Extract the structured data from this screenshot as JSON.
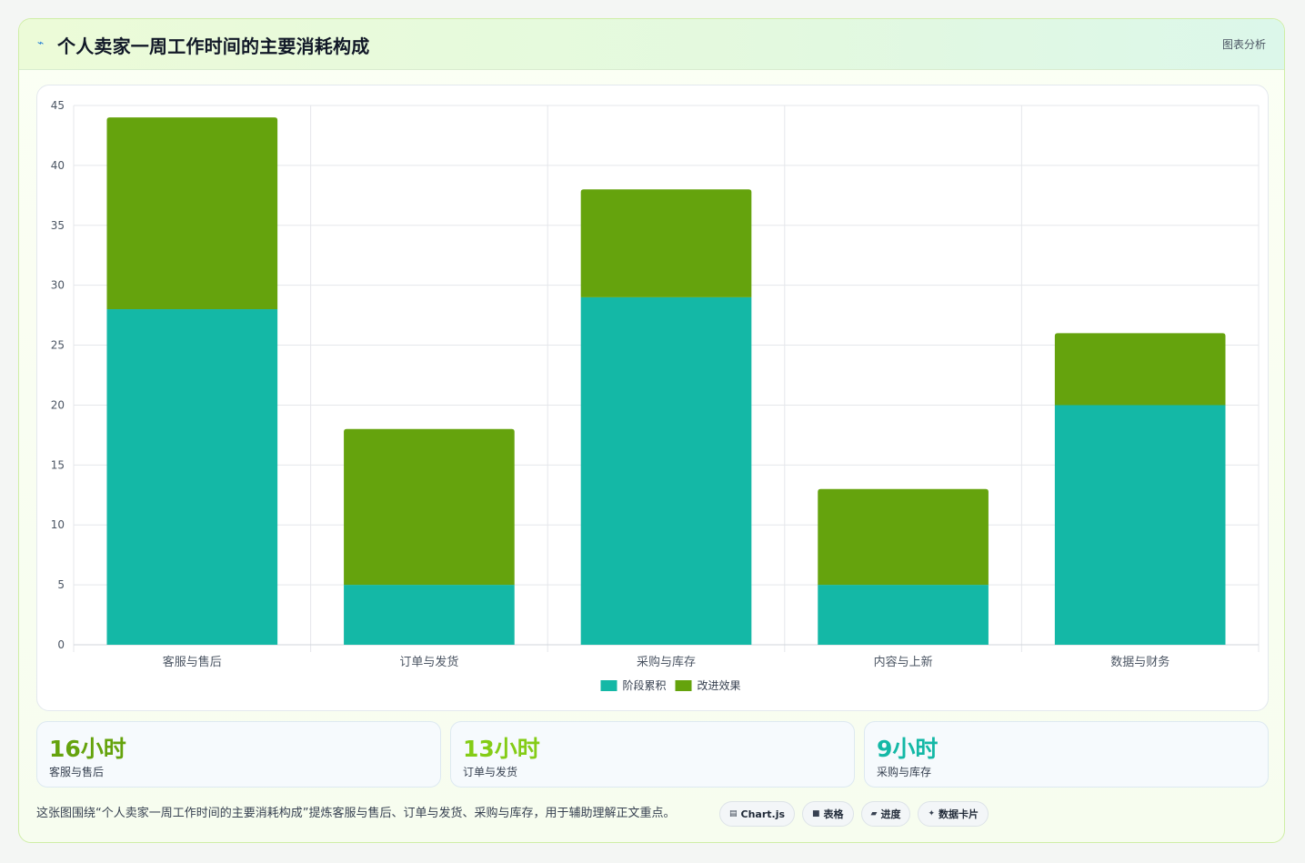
{
  "header": {
    "icon": "lightning-icon",
    "title": "个人卖家一周工作时间的主要消耗构成",
    "tag": "图表分析"
  },
  "chart_data": {
    "type": "bar",
    "stacked": true,
    "title": "",
    "xlabel": "",
    "ylabel": "",
    "ylim": [
      0,
      45
    ],
    "yticks": [
      0,
      5,
      10,
      15,
      20,
      25,
      30,
      35,
      40,
      45
    ],
    "grid": true,
    "legend_position": "bottom",
    "categories": [
      "客服与售后",
      "订单与发货",
      "采购与库存",
      "内容与上新",
      "数据与财务"
    ],
    "series": [
      {
        "name": "阶段累积",
        "color": "#14b8a6",
        "values": [
          28,
          5,
          29,
          5,
          20
        ]
      },
      {
        "name": "改进效果",
        "color": "#65a30d",
        "values": [
          16,
          13,
          9,
          8,
          6
        ]
      }
    ]
  },
  "stats": [
    {
      "value": "16小时",
      "label": "客服与售后",
      "color": "#65a30d"
    },
    {
      "value": "13小时",
      "label": "订单与发货",
      "color": "#84cc16"
    },
    {
      "value": "9小时",
      "label": "采购与库存",
      "color": "#14b8a6"
    }
  ],
  "caption": "这张图围绕“个人卖家一周工作时间的主要消耗构成”提炼客服与售后、订单与发货、采购与库存，用于辅助理解正文重点。",
  "pills": [
    {
      "icon": "chart-icon",
      "glyph": "▤",
      "label": "Chart.js"
    },
    {
      "icon": "table-icon",
      "glyph": "■",
      "label": "表格"
    },
    {
      "icon": "progress-icon",
      "glyph": "▰",
      "label": "进度"
    },
    {
      "icon": "sparkle-icon",
      "glyph": "✦",
      "label": "数据卡片"
    }
  ]
}
